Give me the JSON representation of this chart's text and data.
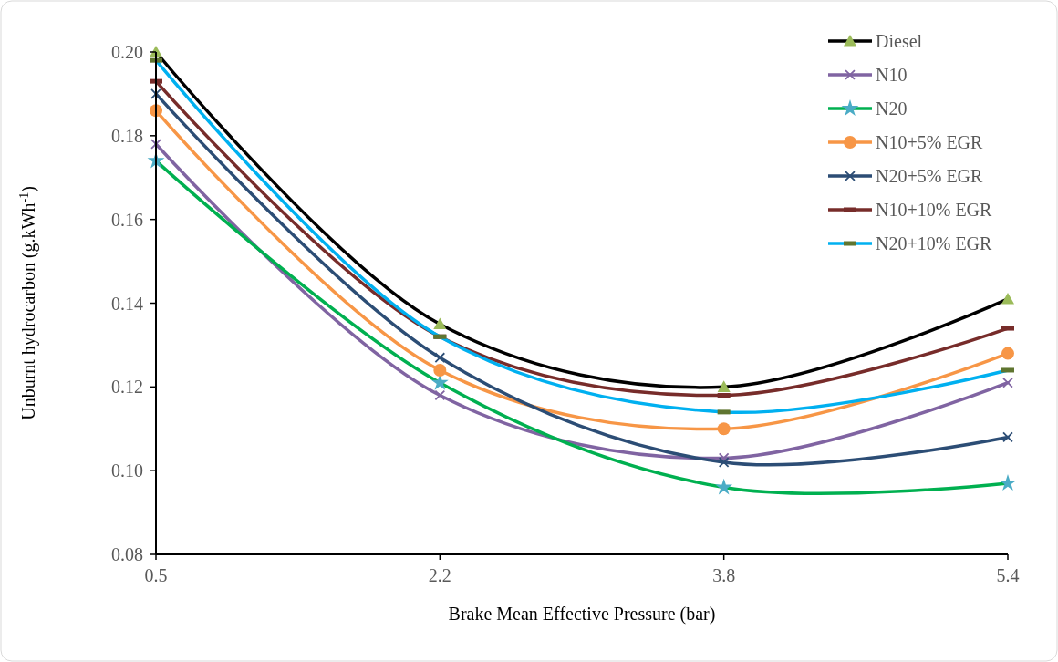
{
  "chart_data": {
    "type": "line",
    "xlabel": "Brake Mean Effective Pressure (bar)",
    "ylabel": "Unburnt hydrocarbon (g.kWh$^{-1}$)",
    "categories": [
      "0.5",
      "2.2",
      "3.8",
      "5.4"
    ],
    "ylim": [
      0.08,
      0.2
    ],
    "yticks": [
      {
        "value": 0.08,
        "label": "0.08"
      },
      {
        "value": 0.1,
        "label": "0.10"
      },
      {
        "value": 0.12,
        "label": "0.12"
      },
      {
        "value": 0.14,
        "label": "0.14"
      },
      {
        "value": 0.16,
        "label": "0.16"
      },
      {
        "value": 0.18,
        "label": "0.18"
      },
      {
        "value": 0.2,
        "label": "0.20"
      }
    ],
    "grid": false,
    "legend": "top right",
    "line_style": "solid",
    "series": [
      {
        "name": "Diesel",
        "color": "#000000",
        "marker": "triangle",
        "colors": [
          "#9bbb59",
          "#9bbb59",
          "#9bbb59",
          "#9bbb59"
        ],
        "values": [
          0.2,
          0.135,
          0.12,
          0.141
        ]
      },
      {
        "name": "N10",
        "color": "#8064a2",
        "marker": "cross",
        "values": [
          0.178,
          0.118,
          0.103,
          0.121
        ]
      },
      {
        "name": "N20",
        "color": "#00b050",
        "marker": "star",
        "colors": [
          "#4bacc6",
          "#4bacc6",
          "#4bacc6",
          "#4bacc6"
        ],
        "values": [
          0.174,
          0.121,
          0.096,
          0.097
        ]
      },
      {
        "name": "N10+5% EGR",
        "color": "#f79646",
        "marker": "circle",
        "values": [
          0.186,
          0.124,
          0.11,
          0.128
        ]
      },
      {
        "name": "N20+5% EGR",
        "color": "#2c4d75",
        "marker": "cross",
        "values": [
          0.19,
          0.127,
          0.102,
          0.108
        ]
      },
      {
        "name": "N10+10% EGR",
        "color": "#772c2a",
        "marker": "square",
        "values": [
          0.193,
          0.132,
          0.118,
          0.134
        ]
      },
      {
        "name": "N20+10% EGR",
        "color": "#00b0f0",
        "marker": "square",
        "colors": [
          "#5f7530",
          "#5f7530",
          "#5f7530",
          "#5f7530"
        ],
        "values": [
          0.198,
          0.132,
          0.114,
          0.124
        ]
      }
    ]
  }
}
